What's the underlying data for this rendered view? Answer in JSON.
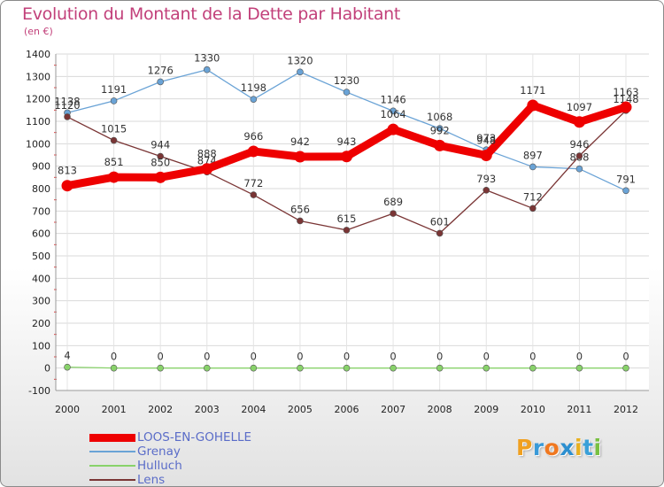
{
  "chart_data": {
    "type": "line",
    "title": "Evolution du Montant de la Dette par Habitant",
    "subtitle": "(en €)",
    "x": [
      "2000",
      "2001",
      "2002",
      "2003",
      "2004",
      "2005",
      "2006",
      "2007",
      "2008",
      "2009",
      "2010",
      "2011",
      "2012"
    ],
    "ylim": [
      -100,
      1400
    ],
    "yticks": [
      -100,
      0,
      100,
      200,
      300,
      400,
      500,
      600,
      700,
      800,
      900,
      1000,
      1100,
      1200,
      1300,
      1400
    ],
    "grid": true,
    "legend_position": "bottom-left",
    "series": [
      {
        "name": "LOOS-EN-GOHELLE",
        "color": "#ee0000",
        "values": [
          813,
          851,
          850,
          888,
          966,
          942,
          943,
          1064,
          992,
          948,
          1171,
          1097,
          1163
        ]
      },
      {
        "name": "Grenay",
        "color": "#6aa3d6",
        "values": [
          1138,
          1191,
          1276,
          1330,
          1198,
          1320,
          1230,
          1146,
          1068,
          973,
          897,
          888,
          791
        ]
      },
      {
        "name": "Hulluch",
        "color": "#88d26a",
        "values": [
          4,
          0,
          0,
          0,
          0,
          0,
          0,
          0,
          0,
          0,
          0,
          0,
          0
        ]
      },
      {
        "name": "Lens",
        "color": "#7a3535",
        "values": [
          1120,
          1015,
          944,
          874,
          772,
          656,
          615,
          689,
          601,
          793,
          712,
          946,
          1148
        ]
      }
    ]
  },
  "logo": {
    "letters": [
      "P",
      "r",
      "o",
      "x",
      "i",
      "t",
      "i"
    ],
    "colors": [
      "#f0a020",
      "#3a9ad8",
      "#f07820",
      "#2c8fd0",
      "#e8b020",
      "#3aa0d8",
      "#78c040"
    ]
  }
}
